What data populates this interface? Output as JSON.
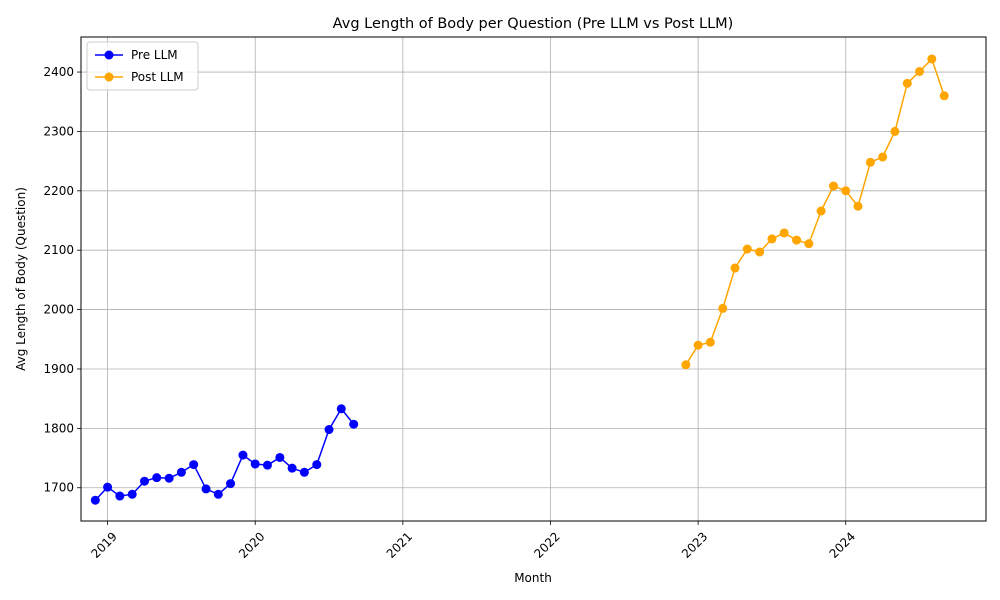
{
  "chart_data": {
    "type": "line",
    "title": "Avg Length of Body per Question (Pre LLM vs Post LLM)",
    "xlabel": "Month",
    "ylabel": "Avg Length of Body (Question)",
    "grid": true,
    "legend_position": "top-left",
    "xlim": [
      2018.82,
      2024.95
    ],
    "ylim": [
      1644,
      2459
    ],
    "x_ticks": [
      {
        "value": 2019,
        "label": "2019"
      },
      {
        "value": 2020,
        "label": "2020"
      },
      {
        "value": 2021,
        "label": "2021"
      },
      {
        "value": 2022,
        "label": "2022"
      },
      {
        "value": 2023,
        "label": "2023"
      },
      {
        "value": 2024,
        "label": "2024"
      }
    ],
    "y_ticks": [
      {
        "value": 1700,
        "label": "1700"
      },
      {
        "value": 1800,
        "label": "1800"
      },
      {
        "value": 1900,
        "label": "1900"
      },
      {
        "value": 2000,
        "label": "2000"
      },
      {
        "value": 2100,
        "label": "2100"
      },
      {
        "value": 2200,
        "label": "2200"
      },
      {
        "value": 2300,
        "label": "2300"
      },
      {
        "value": 2400,
        "label": "2400"
      }
    ],
    "series": [
      {
        "name": "Pre LLM",
        "color": "#0000ff",
        "points": [
          {
            "x": 2018.917,
            "y": 1679
          },
          {
            "x": 2019.0,
            "y": 1701
          },
          {
            "x": 2019.083,
            "y": 1686
          },
          {
            "x": 2019.167,
            "y": 1689
          },
          {
            "x": 2019.25,
            "y": 1711
          },
          {
            "x": 2019.333,
            "y": 1717
          },
          {
            "x": 2019.417,
            "y": 1716
          },
          {
            "x": 2019.5,
            "y": 1726
          },
          {
            "x": 2019.583,
            "y": 1739
          },
          {
            "x": 2019.667,
            "y": 1698
          },
          {
            "x": 2019.75,
            "y": 1689
          },
          {
            "x": 2019.833,
            "y": 1707
          },
          {
            "x": 2019.917,
            "y": 1755
          },
          {
            "x": 2020.0,
            "y": 1740
          },
          {
            "x": 2020.083,
            "y": 1738
          },
          {
            "x": 2020.167,
            "y": 1751
          },
          {
            "x": 2020.25,
            "y": 1733
          },
          {
            "x": 2020.333,
            "y": 1726
          },
          {
            "x": 2020.417,
            "y": 1739
          },
          {
            "x": 2020.5,
            "y": 1798
          },
          {
            "x": 2020.583,
            "y": 1833
          },
          {
            "x": 2020.667,
            "y": 1807
          }
        ]
      },
      {
        "name": "Post LLM",
        "color": "#ffa500",
        "points": [
          {
            "x": 2022.917,
            "y": 1907
          },
          {
            "x": 2023.0,
            "y": 1940
          },
          {
            "x": 2023.083,
            "y": 1945
          },
          {
            "x": 2023.167,
            "y": 2002
          },
          {
            "x": 2023.25,
            "y": 2070
          },
          {
            "x": 2023.333,
            "y": 2102
          },
          {
            "x": 2023.417,
            "y": 2097
          },
          {
            "x": 2023.5,
            "y": 2119
          },
          {
            "x": 2023.583,
            "y": 2129
          },
          {
            "x": 2023.667,
            "y": 2117
          },
          {
            "x": 2023.75,
            "y": 2111
          },
          {
            "x": 2023.833,
            "y": 2166
          },
          {
            "x": 2023.917,
            "y": 2208
          },
          {
            "x": 2024.0,
            "y": 2200
          },
          {
            "x": 2024.083,
            "y": 2174
          },
          {
            "x": 2024.167,
            "y": 2248
          },
          {
            "x": 2024.25,
            "y": 2257
          },
          {
            "x": 2024.333,
            "y": 2300
          },
          {
            "x": 2024.417,
            "y": 2381
          },
          {
            "x": 2024.5,
            "y": 2401
          },
          {
            "x": 2024.583,
            "y": 2422
          },
          {
            "x": 2024.667,
            "y": 2360
          }
        ]
      }
    ]
  }
}
